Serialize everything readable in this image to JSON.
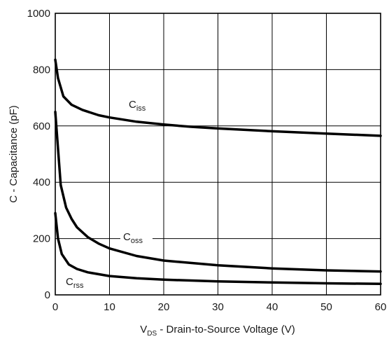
{
  "chart_data": {
    "type": "line",
    "xlabel": {
      "main": "V",
      "sub": "DS",
      "rest": " - Drain-to-Source Voltage (V)"
    },
    "ylabel": "C - Capacitance (pF)",
    "xlim": [
      0,
      60
    ],
    "ylim": [
      0,
      1000
    ],
    "xticks": [
      "0",
      "10",
      "20",
      "30",
      "40",
      "50",
      "60"
    ],
    "yticks": [
      "0",
      "200",
      "400",
      "600",
      "800",
      "1000"
    ],
    "grid": true,
    "line_color": "#000000",
    "series": [
      {
        "name": "Ciss",
        "label_main": "C",
        "label_sub": "iss",
        "points": [
          [
            0,
            835
          ],
          [
            0.5,
            770
          ],
          [
            1.5,
            705
          ],
          [
            3,
            675
          ],
          [
            5,
            657
          ],
          [
            8,
            638
          ],
          [
            10,
            630
          ],
          [
            15,
            615
          ],
          [
            20,
            605
          ],
          [
            25,
            597
          ],
          [
            30,
            591
          ],
          [
            40,
            581
          ],
          [
            50,
            573
          ],
          [
            60,
            565
          ]
        ]
      },
      {
        "name": "Coss",
        "label_main": "C",
        "label_sub": "oss",
        "points": [
          [
            0,
            650
          ],
          [
            0.5,
            520
          ],
          [
            1,
            390
          ],
          [
            2,
            310
          ],
          [
            3,
            270
          ],
          [
            4,
            240
          ],
          [
            6,
            205
          ],
          [
            8,
            182
          ],
          [
            10,
            165
          ],
          [
            15,
            138
          ],
          [
            20,
            122
          ],
          [
            30,
            105
          ],
          [
            40,
            94
          ],
          [
            50,
            87
          ],
          [
            60,
            83
          ]
        ]
      },
      {
        "name": "Crss",
        "label_main": "C",
        "label_sub": "rss",
        "points": [
          [
            0,
            290
          ],
          [
            0.5,
            200
          ],
          [
            1.2,
            145
          ],
          [
            2.5,
            108
          ],
          [
            4,
            92
          ],
          [
            6,
            80
          ],
          [
            10,
            67
          ],
          [
            15,
            59
          ],
          [
            20,
            54
          ],
          [
            30,
            48
          ],
          [
            40,
            44
          ],
          [
            50,
            41
          ],
          [
            60,
            39
          ]
        ]
      }
    ]
  }
}
